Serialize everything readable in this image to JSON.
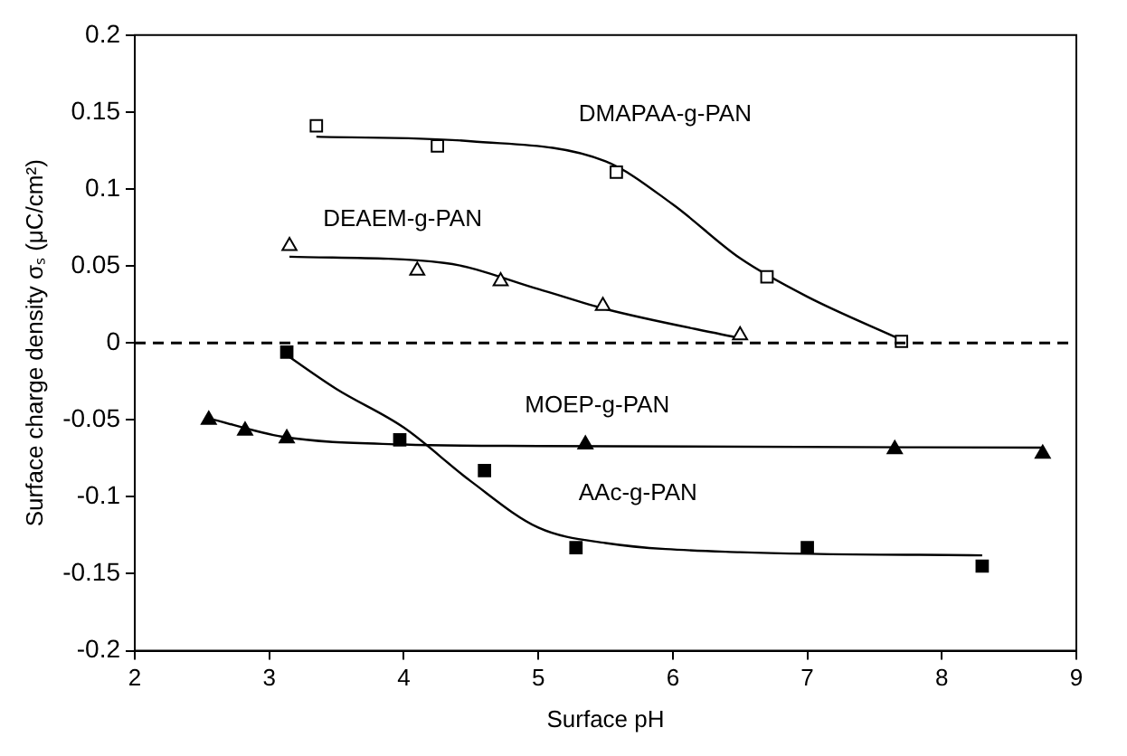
{
  "chart_data": {
    "type": "scatter",
    "xlabel": "Surface pH",
    "ylabel": "Surface charge density σₛ (μC/cm²)",
    "xlim": [
      2,
      9
    ],
    "xticks": [
      2,
      3,
      4,
      5,
      6,
      7,
      8,
      9
    ],
    "ylim": [
      -0.2,
      0.2
    ],
    "yticks": [
      0.2,
      0.15,
      0.1,
      0.05,
      0,
      -0.05,
      -0.1,
      -0.15,
      -0.2
    ],
    "grid": false,
    "legend": false,
    "ref_lines": [
      {
        "axis": "y",
        "value": 0,
        "line_style": "dashed",
        "color": "#000000"
      }
    ],
    "series": [
      {
        "name": "DMAPAA-g-PAN",
        "marker": "square",
        "color": "#000000",
        "x": [
          3.35,
          4.25,
          5.58,
          6.7,
          7.7
        ],
        "values": [
          0.141,
          0.128,
          0.111,
          0.043,
          0.001
        ]
      },
      {
        "name": "DEAEM-g-PAN",
        "marker": "triangle",
        "color": "#000000",
        "x": [
          3.15,
          4.1,
          4.72,
          5.48,
          6.5
        ],
        "values": [
          0.063,
          0.047,
          0.04,
          0.024,
          0.005
        ]
      },
      {
        "name": "MOEP-g-PAN",
        "marker": "triangle",
        "color": "#000000",
        "x": [
          2.55,
          2.82,
          3.13,
          5.35,
          7.65,
          8.75
        ],
        "values": [
          -0.05,
          -0.057,
          -0.062,
          -0.066,
          -0.069,
          -0.072
        ]
      },
      {
        "name": "AAc-g-PAN",
        "marker": "square",
        "color": "#000000",
        "x": [
          3.13,
          3.97,
          4.6,
          5.28,
          7.0,
          8.3
        ],
        "values": [
          -0.006,
          -0.063,
          -0.083,
          -0.133,
          -0.133,
          -0.145
        ]
      },
      {
        "type": "line",
        "marker": "none",
        "color": "#000000",
        "x": [
          3.35,
          4.5,
          5.5,
          6.0,
          6.5,
          7.0,
          7.7
        ],
        "values": [
          0.134,
          0.131,
          0.118,
          0.09,
          0.055,
          0.03,
          0.002
        ]
      },
      {
        "type": "line",
        "marker": "none",
        "color": "#000000",
        "x": [
          3.15,
          4.3,
          5.0,
          5.5,
          6.5
        ],
        "values": [
          0.056,
          0.052,
          0.035,
          0.022,
          0.003
        ]
      },
      {
        "type": "line",
        "marker": "none",
        "color": "#000000",
        "x": [
          2.55,
          3.1,
          4.0,
          5.0,
          8.75
        ],
        "values": [
          -0.049,
          -0.061,
          -0.066,
          -0.067,
          -0.068
        ]
      },
      {
        "type": "line",
        "marker": "none",
        "color": "#000000",
        "x": [
          3.13,
          3.5,
          4.0,
          4.5,
          5.0,
          5.5,
          6.5,
          8.3
        ],
        "values": [
          -0.008,
          -0.03,
          -0.055,
          -0.09,
          -0.12,
          -0.13,
          -0.136,
          -0.138
        ]
      }
    ]
  }
}
